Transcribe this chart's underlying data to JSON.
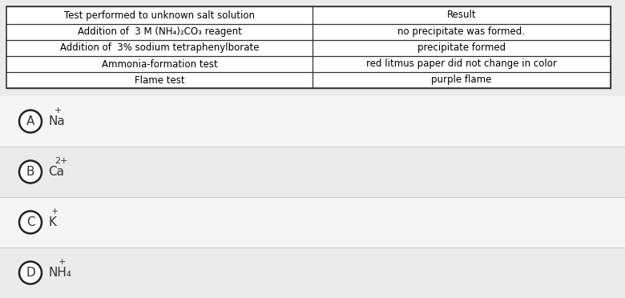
{
  "bg_color": "#ebebeb",
  "table_bg": "#ffffff",
  "table_border": "#333333",
  "choice_row_bg_odd": "#f5f5f5",
  "choice_row_bg_even": "#ebebeb",
  "table_rows": [
    [
      "Test performed to unknown salt solution",
      "Result"
    ],
    [
      "Addition of  3 M (NH₄)₂CO₃ reagent",
      "no precipitate was formed."
    ],
    [
      "Addition of  3% sodium tetraphenylborate",
      "precipitate formed"
    ],
    [
      "Ammonia-formation test",
      "red litmus paper did not change in color"
    ],
    [
      "Flame test",
      "purple flame"
    ]
  ],
  "choices": [
    {
      "letter": "A",
      "text": "Na",
      "superscript": "+"
    },
    {
      "letter": "B",
      "text": "Ca",
      "superscript": "2+"
    },
    {
      "letter": "C",
      "text": "K",
      "superscript": "+"
    },
    {
      "letter": "D",
      "text": "NH₄",
      "superscript": "+"
    }
  ],
  "font_size_table": 8.5,
  "font_size_choices": 11,
  "font_size_superscript": 8
}
